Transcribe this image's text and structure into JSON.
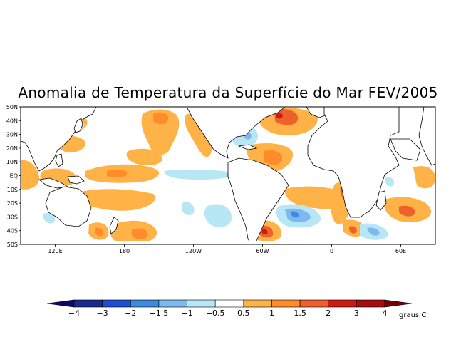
{
  "title": "Anomalia de Temperatura da Superfície do Mar FEV/2005",
  "map": {
    "lat_labels": [
      "50N",
      "40N",
      "30N",
      "20N",
      "10N",
      "EQ",
      "10S",
      "20S",
      "30S",
      "40S",
      "50S"
    ],
    "lon_labels": [
      "120E",
      "180",
      "120W",
      "60W",
      "0",
      "60E"
    ],
    "lon_range": [
      90,
      450
    ],
    "lat_range": [
      -50,
      50
    ]
  },
  "colorbar": {
    "labels": [
      "−4",
      "−3",
      "−2",
      "−1.5",
      "−1",
      "−0.5",
      "0.5",
      "1",
      "1.5",
      "2",
      "3",
      "4"
    ],
    "colors": [
      "#1a2a8c",
      "#1f4fcf",
      "#3f8ae0",
      "#7fb8ee",
      "#b7e6f5",
      "#ffffff",
      "#ffb347",
      "#ff8c2a",
      "#f0602a",
      "#cf1a10",
      "#a80d0d"
    ],
    "units": "graus C"
  },
  "anomaly_regions": {
    "warm": [
      "North Pacific",
      "Western Pacific",
      "Central-East Pacific",
      "North Atlantic",
      "Tropical Atlantic",
      "South Atlantic",
      "Indian Ocean"
    ],
    "cold": [
      "Eastern equatorial Pacific",
      "South-east Pacific",
      "South Atlantic",
      "Gulf of Mexico"
    ]
  }
}
